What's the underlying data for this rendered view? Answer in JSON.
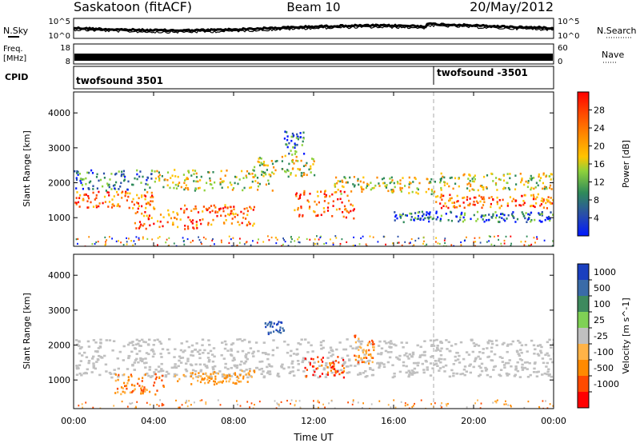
{
  "header": {
    "station": "Saskatoon (fitACF)",
    "beam": "Beam 10",
    "date": "20/May/2012"
  },
  "noise_panel": {
    "left_label": "N.Sky",
    "right_label": "N.Search",
    "left_top_tick": "10^5",
    "left_bottom_tick": "10^0",
    "right_top_tick": "10^5",
    "right_bottom_tick": "10^0"
  },
  "freq_panel": {
    "left_label_line1": "Freq.",
    "left_label_line2": "[MHz]",
    "right_label": "Nave",
    "left_top_tick": "18",
    "left_bottom_tick": "8",
    "right_top_tick": "60",
    "right_bottom_tick": "0"
  },
  "cpid_panel": {
    "label": "CPID",
    "mode_1": "twofsound 3501",
    "mode_2": "twofsound -3501"
  },
  "x_axis": {
    "label": "Time UT",
    "ticks": [
      "00:00",
      "04:00",
      "08:00",
      "12:00",
      "16:00",
      "20:00",
      "00:00"
    ]
  },
  "y_axis": {
    "label": "Slant Range [km]",
    "ticks": [
      "1000",
      "2000",
      "3000",
      "4000"
    ]
  },
  "power_colorbar": {
    "title": "Power [dB]",
    "ticks": [
      "4",
      "8",
      "12",
      "16",
      "20",
      "24",
      "28"
    ],
    "colors": [
      "#0018ff",
      "#2a4fa8",
      "#2f8a5a",
      "#8ed13b",
      "#ffc400",
      "#ff8a00",
      "#ff4a00",
      "#ff0000"
    ]
  },
  "velocity_colorbar": {
    "title": "Velocity [m s^-1]",
    "ticks": [
      "1000",
      "500",
      "100",
      "25",
      "-25",
      "-100",
      "-500",
      "-1000"
    ],
    "colors": [
      "#1a3fbf",
      "#3a6ba8",
      "#3e8a5e",
      "#7fd155",
      "#c0c0c0",
      "#ffb347",
      "#ff8a00",
      "#ff4a00",
      "#ff0000"
    ]
  },
  "chart_data": {
    "type": "heatmap",
    "title": "Saskatoon (fitACF) Beam 10 20/May/2012",
    "x_range_hours": [
      0,
      24
    ],
    "y_range_km": [
      180,
      4600
    ],
    "mode_change_hour": 18,
    "power_scatter_bands": [
      {
        "t0": 0,
        "t1": 4,
        "r0": 1300,
        "r1": 1800,
        "level": "high"
      },
      {
        "t0": 0,
        "t1": 4,
        "r0": 1800,
        "r1": 2400,
        "level": "low"
      },
      {
        "t0": 3,
        "t1": 7,
        "r0": 700,
        "r1": 1400,
        "level": "high"
      },
      {
        "t0": 4,
        "t1": 10,
        "r0": 1800,
        "r1": 2400,
        "level": "mid"
      },
      {
        "t0": 7,
        "t1": 9,
        "r0": 800,
        "r1": 1400,
        "level": "high"
      },
      {
        "t0": 9,
        "t1": 12,
        "r0": 2200,
        "r1": 2800,
        "level": "mid"
      },
      {
        "t0": 10.5,
        "t1": 11.5,
        "r0": 2800,
        "r1": 3500,
        "level": "low"
      },
      {
        "t0": 11,
        "t1": 14,
        "r0": 1000,
        "r1": 1800,
        "level": "high"
      },
      {
        "t0": 13,
        "t1": 18,
        "r0": 1700,
        "r1": 2200,
        "level": "mid"
      },
      {
        "t0": 18,
        "t1": 24,
        "r0": 1300,
        "r1": 1700,
        "level": "high"
      },
      {
        "t0": 18,
        "t1": 24,
        "r0": 1800,
        "r1": 2300,
        "level": "mid"
      },
      {
        "t0": 16,
        "t1": 24,
        "r0": 900,
        "r1": 1200,
        "level": "low"
      }
    ],
    "velocity_scatter_bands": [
      {
        "t0": 0,
        "t1": 24,
        "r0": 1100,
        "r1": 2200,
        "class": "ground"
      },
      {
        "t0": 2,
        "t1": 4.5,
        "r0": 600,
        "r1": 1200,
        "class": "negative-medium"
      },
      {
        "t0": 5,
        "t1": 9,
        "r0": 900,
        "r1": 1300,
        "class": "negative-low"
      },
      {
        "t0": 11.5,
        "t1": 13.5,
        "r0": 1100,
        "r1": 1700,
        "class": "negative-high"
      },
      {
        "t0": 9.5,
        "t1": 10.5,
        "r0": 2300,
        "r1": 2700,
        "class": "positive-high"
      },
      {
        "t0": 14,
        "t1": 15,
        "r0": 1500,
        "r1": 2300,
        "class": "negative-medium"
      }
    ]
  }
}
